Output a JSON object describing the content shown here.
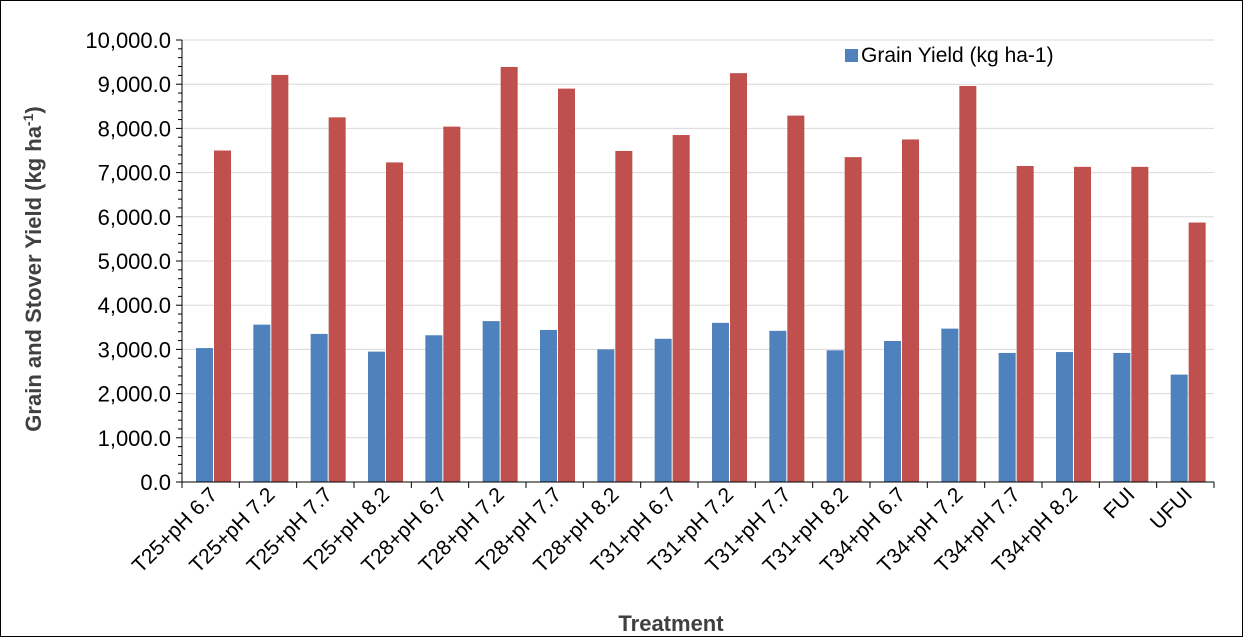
{
  "chart_data": {
    "type": "bar",
    "xlabel": "Treatment",
    "ylabel": "Grain and Stover Yield (kg ha",
    "ylabel_superscript": "-1",
    "ylabel_suffix": ")",
    "ylim": [
      0,
      10000
    ],
    "y_ticks": [
      0,
      1000,
      2000,
      3000,
      4000,
      5000,
      6000,
      7000,
      8000,
      9000,
      10000
    ],
    "y_tick_labels": [
      "0.0",
      "1,000.0",
      "2,000.0",
      "3,000.0",
      "4,000.0",
      "5,000.0",
      "6,000.0",
      "7,000.0",
      "8,000.0",
      "9,000.0",
      "10,000.0"
    ],
    "grid": true,
    "legend_position": "top-right",
    "categories": [
      "T25+pH 6.7",
      "T25+pH 7.2",
      "T25+pH 7.7",
      "T25+pH 8.2",
      "T28+pH 6.7",
      "T28+pH 7.2",
      "T28+pH 7.7",
      "T28+pH 8.2",
      "T31+pH 6.7",
      "T31+pH 7.2",
      "T31+pH 7.7",
      "T31+pH 8.2",
      "T34+pH 6.7",
      "T34+pH 7.2",
      "T34+pH 7.7",
      "T34+pH 8.2",
      "FUI",
      "UFUI"
    ],
    "series": [
      {
        "name": "Grain  Yield (kg ha-1)",
        "color": "#4f81bd",
        "values": [
          3030,
          3560,
          3350,
          2950,
          3320,
          3640,
          3440,
          3000,
          3240,
          3600,
          3420,
          2980,
          3190,
          3470,
          2920,
          2940,
          2920,
          2430
        ]
      },
      {
        "color": "#c0504d",
        "values": [
          7500,
          9210,
          8250,
          7230,
          8040,
          9390,
          8900,
          7490,
          7850,
          9250,
          8290,
          7350,
          7750,
          8960,
          7150,
          7130,
          7130,
          5870
        ]
      }
    ]
  }
}
